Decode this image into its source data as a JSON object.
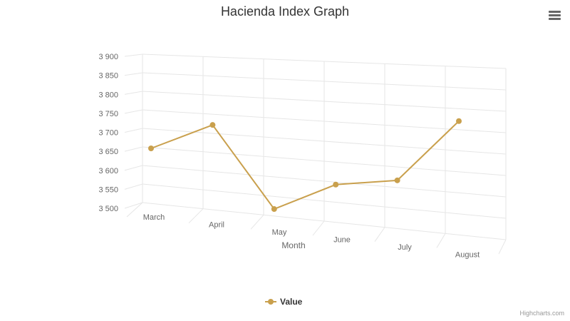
{
  "title": "Hacienda Index Graph",
  "credits": "Highcharts.com",
  "icons": {
    "menu": "hamburger-menu-icon"
  },
  "colors": {
    "series": "#c9a04d",
    "grid": "#e6e6e6",
    "text": "#666666",
    "title": "#333333"
  },
  "chart_data": {
    "type": "line",
    "view": "3d",
    "title": "Hacienda Index Graph",
    "xlabel": "Month",
    "ylabel": "",
    "categories": [
      "March",
      "April",
      "May",
      "June",
      "July",
      "August"
    ],
    "ylim": [
      3500,
      3900
    ],
    "yticks": [
      3500,
      3550,
      3600,
      3650,
      3700,
      3750,
      3800,
      3850,
      3900
    ],
    "ytick_labels": [
      "3 500",
      "3 550",
      "3 600",
      "3 650",
      "3 700",
      "3 750",
      "3 800",
      "3 850",
      "3 900"
    ],
    "grid": true,
    "legend": "bottom-center",
    "series": [
      {
        "name": "Value",
        "color": "#c9a04d",
        "values": [
          3660,
          3735,
          3510,
          3588,
          3610,
          3805
        ]
      }
    ]
  }
}
